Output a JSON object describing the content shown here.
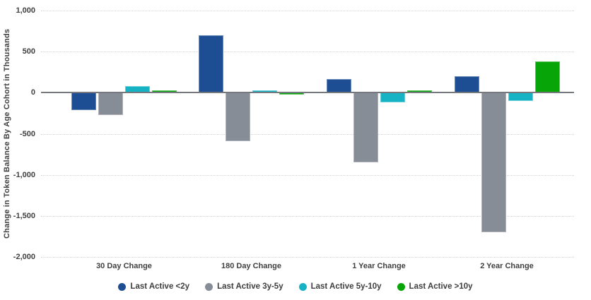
{
  "chart_data": {
    "type": "bar",
    "title": "",
    "xlabel": "",
    "ylabel": "Change in Token Balance By Age Cohort in Thousands",
    "categories": [
      "30 Day Change",
      "180 Day Change",
      "1 Year Change",
      "2 Year Change"
    ],
    "series": [
      {
        "name": "Last Active <2y",
        "color": "#1D4E94",
        "values": [
          -210,
          700,
          170,
          200
        ]
      },
      {
        "name": "Last Active 3y-5y",
        "color": "#868D96",
        "values": [
          -270,
          -590,
          -850,
          -1700
        ]
      },
      {
        "name": "Last Active 5y-10y",
        "color": "#16B3C4",
        "values": [
          80,
          20,
          -120,
          -100
        ]
      },
      {
        "name": "Last Active >10y",
        "color": "#07A507",
        "values": [
          10,
          -25,
          30,
          380
        ]
      }
    ],
    "ylim": [
      -2000,
      1000
    ],
    "ytick_values": [
      1000,
      500,
      0,
      -500,
      -1000,
      -1500,
      -2000
    ],
    "yticks": [
      "1,000",
      "500",
      "0",
      "-500",
      "-1,000",
      "-1,500",
      "-2,000"
    ],
    "grid": "horizontal-dotted",
    "legend_position": "bottom"
  },
  "colors": {
    "background": "#FFFFFF",
    "axis_line": "#75797D",
    "grid_line": "#D2D2D2",
    "label_text": "#404040"
  }
}
